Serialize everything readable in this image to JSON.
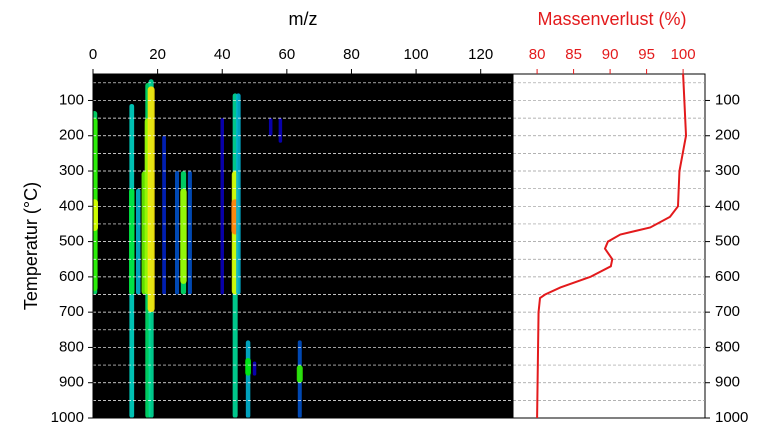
{
  "chart_data": [
    {
      "type": "heatmap",
      "x_label": "m/z",
      "y_label": "Temperatur (°C)",
      "xlim": [
        0,
        130
      ],
      "xticks": [
        0,
        20,
        40,
        60,
        80,
        100,
        120
      ],
      "ylim": [
        25,
        1000
      ],
      "yticks": [
        100,
        200,
        300,
        400,
        500,
        600,
        700,
        800,
        900,
        1000
      ],
      "minor_yticks": [
        50,
        100,
        150,
        200,
        250,
        300,
        350,
        400,
        450,
        500,
        550,
        600,
        650,
        700,
        750,
        800,
        850,
        900,
        950
      ],
      "background": "#000000",
      "grid_color": "#ffffff",
      "traces": [
        {
          "mz": 0.5,
          "from": 130,
          "to": 650,
          "level": 0.45
        },
        {
          "mz": 0.5,
          "from": 150,
          "to": 640,
          "level": 0.6
        },
        {
          "mz": 0.5,
          "from": 380,
          "to": 470,
          "level": 0.75
        },
        {
          "mz": 12,
          "from": 110,
          "to": 1000,
          "level": 0.35
        },
        {
          "mz": 12,
          "from": 350,
          "to": 650,
          "level": 0.5
        },
        {
          "mz": 14,
          "from": 350,
          "to": 650,
          "level": 0.3
        },
        {
          "mz": 16,
          "from": 300,
          "to": 650,
          "level": 0.65
        },
        {
          "mz": 17,
          "from": 50,
          "to": 1000,
          "level": 0.45
        },
        {
          "mz": 17,
          "from": 150,
          "to": 650,
          "level": 0.7
        },
        {
          "mz": 18,
          "from": 40,
          "to": 1000,
          "level": 0.4
        },
        {
          "mz": 18,
          "from": 60,
          "to": 700,
          "level": 0.8
        },
        {
          "mz": 22,
          "from": 200,
          "to": 650,
          "level": 0.15
        },
        {
          "mz": 26,
          "from": 300,
          "to": 650,
          "level": 0.2
        },
        {
          "mz": 28,
          "from": 300,
          "to": 650,
          "level": 0.45
        },
        {
          "mz": 28,
          "from": 350,
          "to": 620,
          "level": 0.7
        },
        {
          "mz": 30,
          "from": 300,
          "to": 650,
          "level": 0.2
        },
        {
          "mz": 40,
          "from": 150,
          "to": 650,
          "level": 0.1
        },
        {
          "mz": 44,
          "from": 80,
          "to": 1000,
          "level": 0.4
        },
        {
          "mz": 44,
          "from": 300,
          "to": 650,
          "level": 0.75
        },
        {
          "mz": 44,
          "from": 380,
          "to": 480,
          "level": 0.9
        },
        {
          "mz": 45,
          "from": 80,
          "to": 650,
          "level": 0.3
        },
        {
          "mz": 48,
          "from": 780,
          "to": 1000,
          "level": 0.3
        },
        {
          "mz": 48,
          "from": 830,
          "to": 880,
          "level": 0.55
        },
        {
          "mz": 50,
          "from": 840,
          "to": 880,
          "level": 0.1
        },
        {
          "mz": 55,
          "from": 150,
          "to": 200,
          "level": 0.1
        },
        {
          "mz": 58,
          "from": 150,
          "to": 220,
          "level": 0.1
        },
        {
          "mz": 64,
          "from": 780,
          "to": 1000,
          "level": 0.2
        },
        {
          "mz": 64,
          "from": 850,
          "to": 900,
          "level": 0.6
        }
      ]
    },
    {
      "type": "line",
      "x_label": "Massenverlust (%)",
      "color": "#e31a1c",
      "xlim": [
        76.7,
        103
      ],
      "xticks": [
        80,
        85,
        90,
        95,
        100
      ],
      "ylim": [
        25,
        1000
      ],
      "yticks": [
        100,
        200,
        300,
        400,
        500,
        600,
        700,
        800,
        900,
        1000
      ],
      "minor_yticks": [
        50,
        100,
        150,
        200,
        250,
        300,
        350,
        400,
        450,
        500,
        550,
        600,
        650,
        700,
        750,
        800,
        850,
        900,
        950
      ],
      "grid_color": "#999999",
      "x": [
        100,
        100.4,
        99.5,
        99.3,
        98.2,
        95.5,
        91.4,
        89.7,
        89.3,
        90.3,
        90.1,
        87.3,
        83.2,
        81.1,
        80.4,
        80.2,
        80
      ],
      "y": [
        25,
        200,
        300,
        400,
        430,
        460,
        480,
        500,
        520,
        550,
        570,
        600,
        630,
        650,
        660,
        700,
        1000
      ]
    }
  ]
}
